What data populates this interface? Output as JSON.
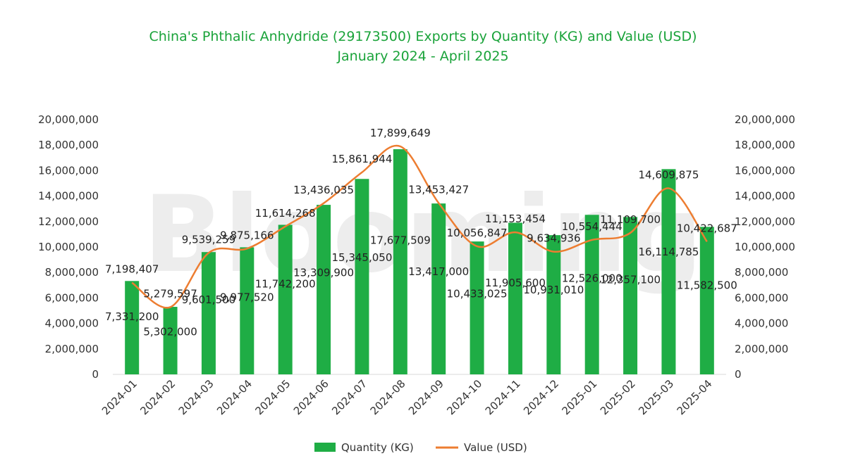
{
  "chart_data": {
    "type": "bar",
    "title": "China's Phthalic Anhydride (29173500) Exports by Quantity (KG) and Value (USD)",
    "subtitle": "January 2024 - April 2025",
    "watermark": "Blooming",
    "categories": [
      "2024-01",
      "2024-02",
      "2024-03",
      "2024-04",
      "2024-05",
      "2024-06",
      "2024-07",
      "2024-08",
      "2024-09",
      "2024-10",
      "2024-11",
      "2024-12",
      "2025-01",
      "2025-02",
      "2025-03",
      "2025-04"
    ],
    "series": [
      {
        "name": "Quantity (KG)",
        "type": "bar",
        "axis": "left",
        "color": "#1fad45",
        "values": [
          7331200,
          5302000,
          9601500,
          9977520,
          11742200,
          13309900,
          15345050,
          17677509,
          13417000,
          10433025,
          11905600,
          10931010,
          12526000,
          12357100,
          16114785,
          11582500
        ],
        "labels": [
          "7,331,200",
          "5,302,000",
          "9,601,500",
          "9,977,520",
          "11,742,200",
          "13,309,900",
          "15,345,050",
          "17,677,509",
          "13,417,000",
          "10,433,025",
          "11,905,600",
          "10,931,010",
          "12,526,000",
          "12,357,100",
          "16,114,785",
          "11,582,500"
        ]
      },
      {
        "name": "Value (USD)",
        "type": "line",
        "axis": "right",
        "color": "#ed7d31",
        "values": [
          7198407,
          5279597,
          9539259,
          9875166,
          11614268,
          13436035,
          15861944,
          17899649,
          13453427,
          10056847,
          11153454,
          9634936,
          10554444,
          11109700,
          14609875,
          10422687
        ],
        "labels": [
          "7,198,407",
          "5,279,597",
          "9,539,259",
          "9,875,166",
          "11,614,268",
          "13,436,035",
          "15,861,944",
          "17,899,649",
          "13,453,427",
          "10,056,847",
          "11,153,454",
          "9,634,936",
          "10,554,444",
          "11,109,700",
          "14,609,875",
          "10,422,687"
        ]
      }
    ],
    "y_left": {
      "min": 0,
      "max": 20000000,
      "step": 2000000,
      "tick_labels": [
        "0",
        "2,000,000",
        "4,000,000",
        "6,000,000",
        "8,000,000",
        "10,000,000",
        "12,000,000",
        "14,000,000",
        "16,000,000",
        "18,000,000",
        "20,000,000"
      ]
    },
    "y_right": {
      "min": 0,
      "max": 20000000,
      "step": 2000000,
      "tick_labels": [
        "0",
        "2,000,000",
        "4,000,000",
        "6,000,000",
        "8,000,000",
        "10,000,000",
        "12,000,000",
        "14,000,000",
        "16,000,000",
        "18,000,000",
        "20,000,000"
      ]
    },
    "legend": {
      "position": "bottom",
      "entries": [
        "Quantity (KG)",
        "Value (USD)"
      ]
    },
    "grid": false
  }
}
